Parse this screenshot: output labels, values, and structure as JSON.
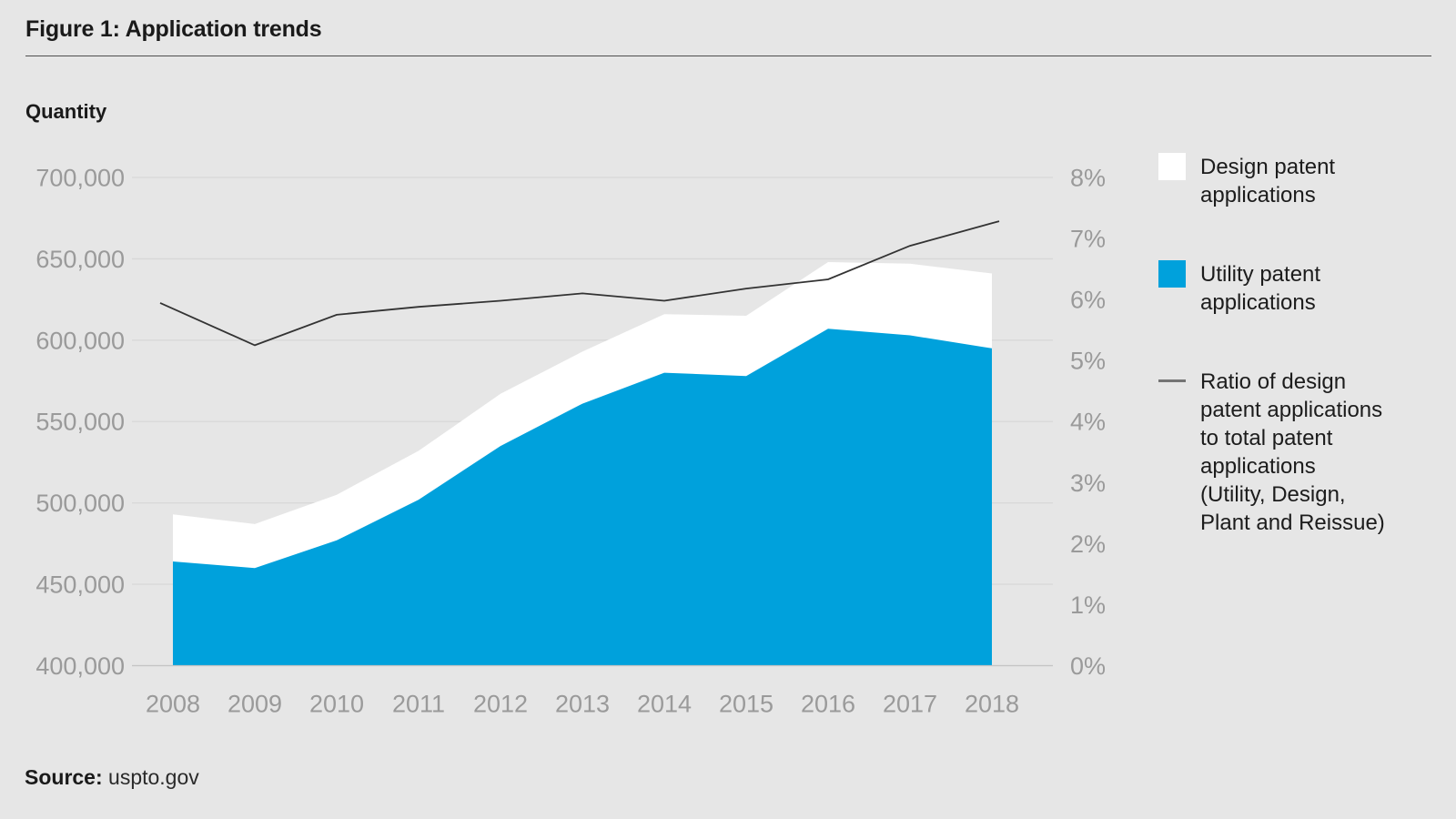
{
  "page": {
    "title": "Figure 1: Application trends",
    "source_label": "Source:",
    "source_value": "uspto.gov"
  },
  "colors": {
    "background": "#e6e6e6",
    "gridline": "#d8d8d8",
    "baseline": "#c4c4c4",
    "axis_text": "#9a9a9a",
    "utility_blue": "#00a1dc",
    "design_white": "#ffffff",
    "ratio_line": "#333333",
    "title_text": "#1a1a1a"
  },
  "legend": {
    "design_label": "Design patent\napplications",
    "utility_label": "Utility patent\napplications",
    "ratio_label": "Ratio of design\npatent applications\nto total patent\napplications\n(Utility, Design,\nPlant and Reissue)"
  },
  "chart_data": {
    "type": "area",
    "title": "Figure 1: Application trends",
    "source": "uspto.gov",
    "categories": [
      2008,
      2009,
      2010,
      2011,
      2012,
      2013,
      2014,
      2015,
      2016,
      2017,
      2018
    ],
    "series": [
      {
        "name": "Utility patent applications",
        "type": "area",
        "stack": true,
        "axis": "left",
        "color": "#00a1dc",
        "values": [
          464000,
          460000,
          477000,
          502000,
          535000,
          561000,
          580000,
          578000,
          607000,
          603000,
          595000
        ]
      },
      {
        "name": "Design patent applications",
        "type": "area",
        "stack": true,
        "axis": "left",
        "color": "#ffffff",
        "values": [
          29000,
          27000,
          28000,
          30000,
          32000,
          32000,
          36000,
          37000,
          41000,
          44000,
          46000
        ]
      },
      {
        "name": "Ratio of design patent applications to total patent applications (Utility, Design, Plant and Reissue)",
        "type": "line",
        "axis": "right",
        "color": "#333333",
        "values": [
          5.85,
          5.25,
          5.75,
          5.88,
          5.98,
          6.1,
          5.98,
          6.18,
          6.33,
          6.88,
          7.25
        ]
      }
    ],
    "left_axis": {
      "label": "Quantity",
      "min": 400000,
      "max": 700000,
      "tick_labels": [
        "400,000",
        "450,000",
        "500,000",
        "550,000",
        "600,000",
        "650,000",
        "700,000"
      ],
      "tick_values": [
        400000,
        450000,
        500000,
        550000,
        600000,
        650000,
        700000
      ]
    },
    "right_axis": {
      "min": 0,
      "max": 8,
      "tick_labels": [
        "0%",
        "1%",
        "2%",
        "3%",
        "4%",
        "5%",
        "6%",
        "7%",
        "8%"
      ],
      "tick_values": [
        0,
        1,
        2,
        3,
        4,
        5,
        6,
        7,
        8
      ]
    },
    "x_tick_labels": [
      "2008",
      "2009",
      "2010",
      "2011",
      "2012",
      "2013",
      "2014",
      "2015",
      "2016",
      "2017",
      "2018"
    ],
    "grid": true,
    "legend_position": "right"
  }
}
